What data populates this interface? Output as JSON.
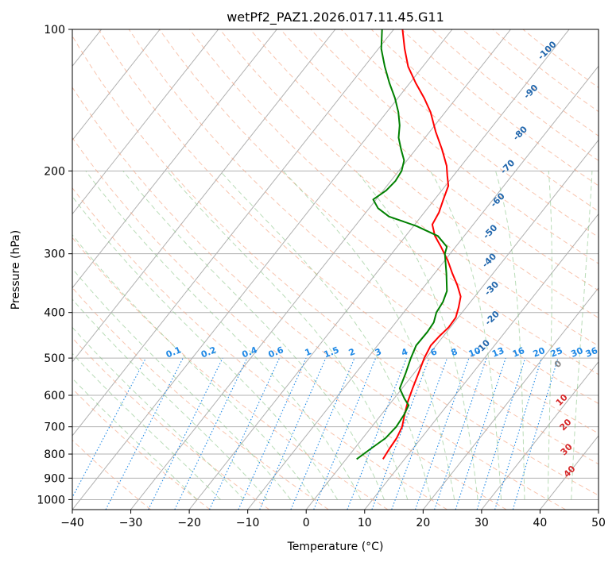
{
  "chart_data": {
    "type": "skew-t",
    "title": "wetPf2_PAZ1.2026.017.11.45.G11",
    "xlabel": "Temperature (°C)",
    "ylabel": "Pressure (hPa)",
    "xlim": [
      -40,
      50
    ],
    "ylim": [
      1050,
      100
    ],
    "x_ticks": [
      -40,
      -30,
      -20,
      -10,
      0,
      10,
      20,
      30,
      40,
      50
    ],
    "x_tick_labels": [
      "−40",
      "−30",
      "−20",
      "−10",
      "0",
      "10",
      "20",
      "30",
      "40",
      "50"
    ],
    "y_ticks": [
      100,
      200,
      300,
      400,
      500,
      600,
      700,
      800,
      900,
      1000
    ],
    "y_tick_labels": [
      "100",
      "200",
      "300",
      "400",
      "500",
      "600",
      "700",
      "800",
      "900",
      "1000"
    ],
    "grid": true,
    "dry_adiabat_labels": [
      {
        "text": "-100",
        "p": 112,
        "t": -20.3
      },
      {
        "text": "-90",
        "p": 137,
        "t": -17.5
      },
      {
        "text": "-80",
        "p": 168,
        "t": -13.7
      },
      {
        "text": "-70",
        "p": 198,
        "t": -11.3
      },
      {
        "text": "-60",
        "p": 233,
        "t": -8.5
      },
      {
        "text": "-50",
        "p": 272,
        "t": -5.5
      },
      {
        "text": "-40",
        "p": 313,
        "t": -1.8
      },
      {
        "text": "-30",
        "p": 359,
        "t": 2.4
      },
      {
        "text": "-20",
        "p": 415,
        "t": 6.5
      },
      {
        "text": "-10",
        "p": 478,
        "t": 8.8
      }
    ],
    "mixing_ratio_labels": [
      "0.1",
      "0.2",
      "0.4",
      "0.6",
      "1",
      "1.5",
      "2",
      "3",
      "4",
      "6",
      "8",
      "10",
      "13",
      "16",
      "20",
      "25",
      "30",
      "36"
    ],
    "mixing_ratio_values": [
      0.1,
      0.2,
      0.4,
      0.6,
      1,
      1.5,
      2,
      3,
      4,
      6,
      8,
      10,
      13,
      16,
      20,
      25,
      30,
      36
    ],
    "mixing_ratio_label_x": [
      -22.5,
      -16.5,
      -9.5,
      -5,
      0.5,
      4.5,
      8,
      12.5,
      17,
      22,
      25.5,
      29,
      33,
      36.5,
      40,
      43,
      46.5,
      49
    ],
    "moist_adiabat_labels": [
      {
        "text": "0",
        "color": "#888888",
        "p": 520,
        "t": 24
      },
      {
        "text": "10",
        "color": "#d62728",
        "p": 620,
        "t": 29.5
      },
      {
        "text": "20",
        "color": "#d62728",
        "p": 700,
        "t": 33.5
      },
      {
        "text": "30",
        "color": "#d62728",
        "p": 790,
        "t": 37
      },
      {
        "text": "40",
        "color": "#d62728",
        "p": 880,
        "t": 40.5
      }
    ],
    "series": [
      {
        "name": "Temperature",
        "color": "#ff0000",
        "points": [
          [
            820,
            6.3
          ],
          [
            780,
            6.0
          ],
          [
            740,
            5.8
          ],
          [
            700,
            5.2
          ],
          [
            660,
            4.0
          ],
          [
            620,
            2.8
          ],
          [
            580,
            1.8
          ],
          [
            540,
            0.8
          ],
          [
            500,
            -0.3
          ],
          [
            470,
            -0.9
          ],
          [
            450,
            -0.7
          ],
          [
            430,
            -0.3
          ],
          [
            410,
            -0.4
          ],
          [
            390,
            -1.3
          ],
          [
            370,
            -2.4
          ],
          [
            350,
            -4.5
          ],
          [
            330,
            -7.0
          ],
          [
            310,
            -9.5
          ],
          [
            290,
            -12.5
          ],
          [
            275,
            -15.0
          ],
          [
            260,
            -17.0
          ],
          [
            245,
            -17.5
          ],
          [
            230,
            -18.5
          ],
          [
            215,
            -19.5
          ],
          [
            205,
            -21.0
          ],
          [
            195,
            -22.5
          ],
          [
            180,
            -25.5
          ],
          [
            165,
            -29.0
          ],
          [
            150,
            -32.5
          ],
          [
            140,
            -35.5
          ],
          [
            130,
            -39.0
          ],
          [
            120,
            -42.5
          ],
          [
            110,
            -45.5
          ],
          [
            100,
            -48.5
          ]
        ]
      },
      {
        "name": "Dewpoint",
        "color": "#008000",
        "points": [
          [
            820,
            1.8
          ],
          [
            780,
            2.8
          ],
          [
            740,
            3.9
          ],
          [
            700,
            4.2
          ],
          [
            660,
            3.9
          ],
          [
            630,
            3.4
          ],
          [
            610,
            1.8
          ],
          [
            580,
            -0.4
          ],
          [
            540,
            -1.4
          ],
          [
            500,
            -2.6
          ],
          [
            470,
            -3.4
          ],
          [
            440,
            -3.3
          ],
          [
            420,
            -3.5
          ],
          [
            400,
            -4.4
          ],
          [
            380,
            -4.7
          ],
          [
            360,
            -5.5
          ],
          [
            330,
            -8.0
          ],
          [
            300,
            -10.9
          ],
          [
            290,
            -11.5
          ],
          [
            275,
            -14.5
          ],
          [
            262,
            -19.5
          ],
          [
            250,
            -25.5
          ],
          [
            240,
            -28.5
          ],
          [
            230,
            -30.5
          ],
          [
            220,
            -29.5
          ],
          [
            210,
            -29.2
          ],
          [
            200,
            -29.5
          ],
          [
            190,
            -30.5
          ],
          [
            180,
            -32.5
          ],
          [
            170,
            -34.5
          ],
          [
            160,
            -36.0
          ],
          [
            150,
            -38.0
          ],
          [
            140,
            -40.5
          ],
          [
            130,
            -43.5
          ],
          [
            120,
            -46.5
          ],
          [
            110,
            -49.5
          ],
          [
            100,
            -52.0
          ]
        ]
      }
    ]
  }
}
